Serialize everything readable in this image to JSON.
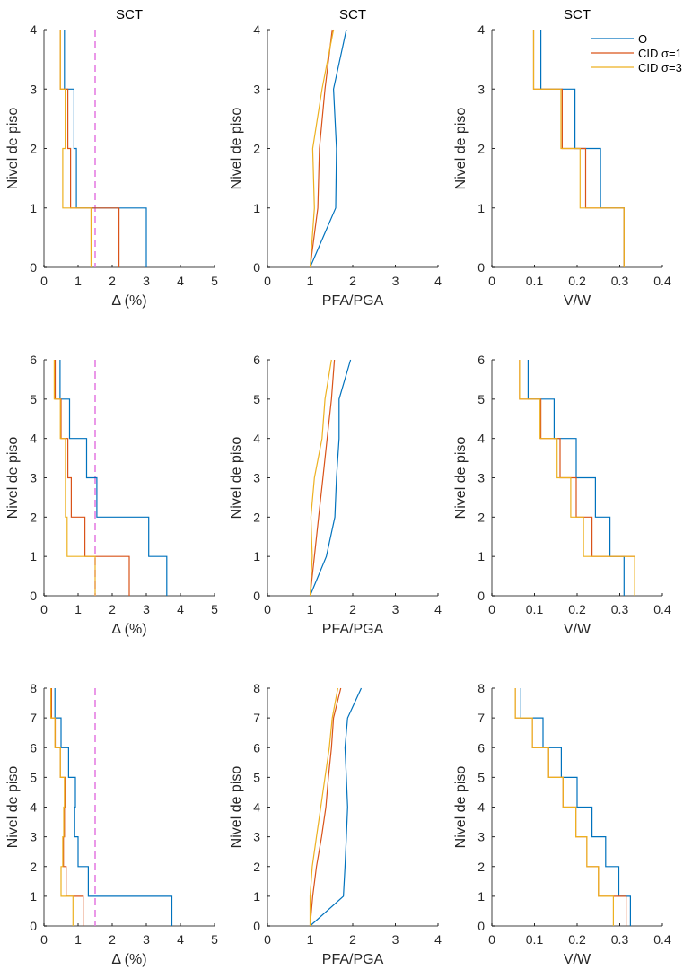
{
  "chart_data": {
    "type": "line",
    "layout": "3x3 grid of subplots (rows: 4, 6, 8 story buildings; columns: drift, PFA/PGA, V/W)",
    "legend": {
      "placement": "top-right of top-right subplot",
      "entries": [
        {
          "key": "O",
          "label": "O",
          "color": "#0072BD"
        },
        {
          "key": "CID1",
          "label": "CID σ=1",
          "color": "#D95319"
        },
        {
          "key": "CID3",
          "label": "CID σ=3",
          "color": "#EDB120"
        }
      ]
    },
    "limit_line": {
      "value": 1.5,
      "color": "#E377E0",
      "style": "dashed",
      "applies_to": "drift"
    },
    "ylabel": "Nivel de piso",
    "colors": {
      "O": "#0072BD",
      "CID1": "#D95319",
      "CID3": "#EDB120",
      "limit": "#E377E0",
      "axis": "#262626"
    },
    "panels": [
      {
        "id": "r1c1",
        "title": "SCT",
        "kind": "stairs",
        "xlabel": "Δ (%)",
        "xlim": [
          0,
          5
        ],
        "xticks": [
          "0",
          "1",
          "2",
          "3",
          "4",
          "5"
        ],
        "ylim": [
          0,
          4
        ],
        "yticks": [
          "0",
          "1",
          "2",
          "3",
          "4"
        ],
        "show_limit": true,
        "series": {
          "O": [
            3.0,
            0.95,
            0.88,
            0.6
          ],
          "CID1": [
            2.2,
            0.78,
            0.7,
            0.48
          ],
          "CID3": [
            1.38,
            0.55,
            0.62,
            0.48
          ]
        }
      },
      {
        "id": "r1c2",
        "title": "SCT",
        "kind": "profile",
        "xlabel": "PFA/PGA",
        "xlim": [
          0,
          4
        ],
        "xticks": [
          "0",
          "1",
          "2",
          "3",
          "4"
        ],
        "ylim": [
          0,
          4
        ],
        "yticks": [
          "0",
          "1",
          "2",
          "3",
          "4"
        ],
        "show_limit": false,
        "series": {
          "O": [
            1,
            1.6,
            1.62,
            1.55,
            1.85
          ],
          "CID1": [
            1,
            1.18,
            1.22,
            1.35,
            1.52
          ],
          "CID3": [
            1,
            1.1,
            1.06,
            1.28,
            1.55
          ]
        }
      },
      {
        "id": "r1c3",
        "title": "SCT",
        "kind": "stairs",
        "xlabel": "V/W",
        "xlim": [
          0,
          0.4
        ],
        "xticks": [
          "0",
          "0.1",
          "0.2",
          "0.3",
          "0.4"
        ],
        "ylim": [
          0,
          4
        ],
        "yticks": [
          "0",
          "1",
          "2",
          "3",
          "4"
        ],
        "show_limit": false,
        "show_legend": true,
        "series": {
          "O": [
            0.31,
            0.255,
            0.195,
            0.115
          ],
          "CID1": [
            0.31,
            0.22,
            0.165,
            0.098
          ],
          "CID3": [
            0.31,
            0.207,
            0.162,
            0.098
          ]
        }
      },
      {
        "id": "r2c1",
        "title": "",
        "kind": "stairs",
        "xlabel": "Δ (%)",
        "xlim": [
          0,
          5
        ],
        "xticks": [
          "0",
          "1",
          "2",
          "3",
          "4",
          "5"
        ],
        "ylim": [
          0,
          6
        ],
        "yticks": [
          "0",
          "1",
          "2",
          "3",
          "4",
          "5",
          "6"
        ],
        "show_limit": true,
        "series": {
          "O": [
            3.6,
            3.07,
            1.55,
            1.25,
            0.75,
            0.47
          ],
          "CID1": [
            2.5,
            1.2,
            0.8,
            0.7,
            0.5,
            0.33
          ],
          "CID3": [
            1.5,
            0.68,
            0.63,
            0.63,
            0.48,
            0.3
          ]
        }
      },
      {
        "id": "r2c2",
        "title": "",
        "kind": "profile",
        "xlabel": "PFA/PGA",
        "xlim": [
          0,
          4
        ],
        "xticks": [
          "0",
          "1",
          "2",
          "3",
          "4"
        ],
        "ylim": [
          0,
          6
        ],
        "yticks": [
          "0",
          "1",
          "2",
          "3",
          "4",
          "5",
          "6"
        ],
        "show_limit": false,
        "series": {
          "O": [
            1,
            1.38,
            1.58,
            1.62,
            1.68,
            1.68,
            1.95
          ],
          "CID1": [
            1,
            1.1,
            1.2,
            1.3,
            1.4,
            1.5,
            1.57
          ],
          "CID3": [
            1,
            1.05,
            1.02,
            1.1,
            1.28,
            1.35,
            1.5
          ]
        }
      },
      {
        "id": "r2c3",
        "title": "",
        "kind": "stairs",
        "xlabel": "V/W",
        "xlim": [
          0,
          0.4
        ],
        "xticks": [
          "0",
          "0.1",
          "0.2",
          "0.3",
          "0.4"
        ],
        "ylim": [
          0,
          6
        ],
        "yticks": [
          "0",
          "1",
          "2",
          "3",
          "4",
          "5",
          "6"
        ],
        "show_limit": false,
        "series": {
          "O": [
            0.31,
            0.277,
            0.243,
            0.198,
            0.146,
            0.085
          ],
          "CID1": [
            0.335,
            0.235,
            0.198,
            0.16,
            0.115,
            0.065
          ],
          "CID3": [
            0.335,
            0.215,
            0.185,
            0.153,
            0.113,
            0.065
          ]
        }
      },
      {
        "id": "r3c1",
        "title": "",
        "kind": "stairs",
        "xlabel": "Δ (%)",
        "xlim": [
          0,
          5
        ],
        "xticks": [
          "0",
          "1",
          "2",
          "3",
          "4",
          "5"
        ],
        "ylim": [
          0,
          8
        ],
        "yticks": [
          "0",
          "1",
          "2",
          "3",
          "4",
          "5",
          "6",
          "7",
          "8"
        ],
        "show_limit": true,
        "series": {
          "O": [
            3.75,
            1.3,
            1.0,
            0.9,
            0.92,
            0.72,
            0.5,
            0.32
          ],
          "CID1": [
            1.15,
            0.65,
            0.57,
            0.6,
            0.62,
            0.48,
            0.33,
            0.22
          ],
          "CID3": [
            0.85,
            0.5,
            0.55,
            0.58,
            0.6,
            0.48,
            0.32,
            0.2
          ]
        }
      },
      {
        "id": "r3c2",
        "title": "",
        "kind": "profile",
        "xlabel": "PFA/PGA",
        "xlim": [
          0,
          4
        ],
        "xticks": [
          "0",
          "1",
          "2",
          "3",
          "4"
        ],
        "ylim": [
          0,
          8
        ],
        "yticks": [
          "0",
          "1",
          "2",
          "3",
          "4",
          "5",
          "6",
          "7",
          "8"
        ],
        "show_limit": false,
        "series": {
          "O": [
            1,
            1.78,
            1.82,
            1.85,
            1.88,
            1.85,
            1.82,
            1.88,
            2.2
          ],
          "CID1": [
            1,
            1.06,
            1.15,
            1.27,
            1.37,
            1.43,
            1.5,
            1.55,
            1.72
          ],
          "CID3": [
            1,
            1.0,
            1.05,
            1.15,
            1.25,
            1.35,
            1.45,
            1.52,
            1.65
          ]
        }
      },
      {
        "id": "r3c3",
        "title": "",
        "kind": "stairs",
        "xlabel": "V/W",
        "xlim": [
          0,
          0.4
        ],
        "xticks": [
          "0",
          "0.1",
          "0.2",
          "0.3",
          "0.4"
        ],
        "ylim": [
          0,
          8
        ],
        "yticks": [
          "0",
          "1",
          "2",
          "3",
          "4",
          "5",
          "6",
          "7",
          "8"
        ],
        "show_limit": false,
        "series": {
          "O": [
            0.325,
            0.298,
            0.267,
            0.235,
            0.2,
            0.163,
            0.12,
            0.068
          ],
          "CID1": [
            0.315,
            0.25,
            0.223,
            0.197,
            0.167,
            0.133,
            0.095,
            0.055
          ],
          "CID3": [
            0.285,
            0.25,
            0.223,
            0.197,
            0.167,
            0.133,
            0.095,
            0.055
          ]
        }
      }
    ]
  }
}
